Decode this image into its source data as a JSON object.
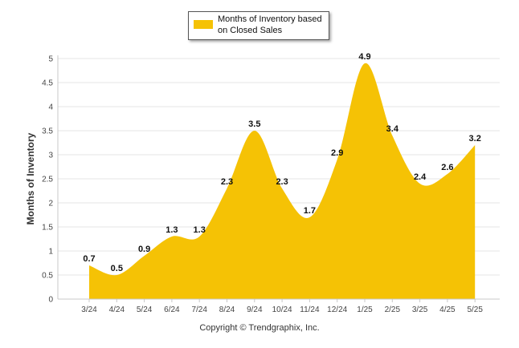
{
  "chart_data": {
    "type": "area",
    "categories": [
      "3/24",
      "4/24",
      "5/24",
      "6/24",
      "7/24",
      "8/24",
      "9/24",
      "10/24",
      "11/24",
      "12/24",
      "1/25",
      "2/25",
      "3/25",
      "4/25",
      "5/25"
    ],
    "series": [
      {
        "name": "Months of Inventory based on Closed Sales",
        "values": [
          0.7,
          0.5,
          0.9,
          1.3,
          1.3,
          2.3,
          3.5,
          2.3,
          1.7,
          2.9,
          4.9,
          3.4,
          2.4,
          2.6,
          3.2
        ]
      }
    ],
    "data_labels": [
      "0.7",
      "0.5",
      "0.9",
      "1.3",
      "1.3",
      "2.3",
      "3.5",
      "2.3",
      "1.7",
      "2.9",
      "4.9",
      "3.4",
      "2.4",
      "2.6",
      "3.2"
    ],
    "yticks": [
      "0",
      "0.5",
      "1",
      "1.5",
      "2",
      "2.5",
      "3",
      "3.5",
      "4",
      "4.5",
      "5"
    ],
    "ylim": [
      0,
      5
    ],
    "ylabel": "Months of Inventory",
    "xlabel": "",
    "title": "",
    "legend_position": "top-center",
    "grid": true,
    "colors": {
      "fill": "#F5C205",
      "grid": "#e6e6e6",
      "axis": "#c8c8c8"
    }
  },
  "footer": {
    "copyright": "Copyright © Trendgraphix, Inc."
  }
}
